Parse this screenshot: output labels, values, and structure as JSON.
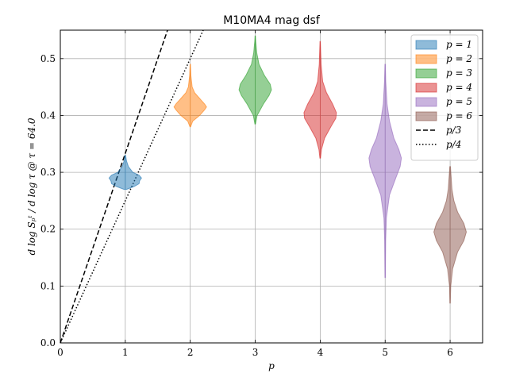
{
  "chart_data": {
    "type": "violin",
    "title": "M10MA4 mag dsf",
    "xlabel": "p",
    "ylabel": "d log Sₚᵗ / d log τ @ τ = 64.0",
    "xlim": [
      0,
      6.5
    ],
    "ylim": [
      0,
      0.55
    ],
    "xticks": [
      0,
      1,
      2,
      3,
      4,
      5,
      6
    ],
    "yticks": [
      0.0,
      0.1,
      0.2,
      0.3,
      0.4,
      0.5
    ],
    "grid": true,
    "legend_position": "top-right",
    "violins": [
      {
        "name": "p = 1",
        "p": 1,
        "color": "#1f77b4",
        "median": 0.29,
        "min": 0.27,
        "max": 0.33,
        "profile": [
          [
            0.27,
            0.02
          ],
          [
            0.275,
            0.14
          ],
          [
            0.28,
            0.22
          ],
          [
            0.285,
            0.23
          ],
          [
            0.29,
            0.26
          ],
          [
            0.295,
            0.22
          ],
          [
            0.3,
            0.12
          ],
          [
            0.31,
            0.05
          ],
          [
            0.32,
            0.02
          ],
          [
            0.33,
            0.005
          ]
        ]
      },
      {
        "name": "p = 2",
        "p": 2,
        "color": "#ff7f0e",
        "median": 0.415,
        "min": 0.38,
        "max": 0.49,
        "profile": [
          [
            0.38,
            0.005
          ],
          [
            0.39,
            0.04
          ],
          [
            0.4,
            0.15
          ],
          [
            0.41,
            0.23
          ],
          [
            0.415,
            0.26
          ],
          [
            0.42,
            0.23
          ],
          [
            0.43,
            0.15
          ],
          [
            0.44,
            0.07
          ],
          [
            0.45,
            0.03
          ],
          [
            0.47,
            0.01
          ],
          [
            0.49,
            0.003
          ]
        ]
      },
      {
        "name": "p = 3",
        "p": 3,
        "color": "#2ca02c",
        "median": 0.445,
        "min": 0.385,
        "max": 0.54,
        "profile": [
          [
            0.385,
            0.005
          ],
          [
            0.4,
            0.03
          ],
          [
            0.42,
            0.13
          ],
          [
            0.435,
            0.22
          ],
          [
            0.445,
            0.26
          ],
          [
            0.455,
            0.24
          ],
          [
            0.47,
            0.15
          ],
          [
            0.49,
            0.06
          ],
          [
            0.51,
            0.025
          ],
          [
            0.53,
            0.008
          ],
          [
            0.54,
            0.003
          ]
        ]
      },
      {
        "name": "p = 4",
        "p": 4,
        "color": "#d62728",
        "median": 0.4,
        "min": 0.325,
        "max": 0.53,
        "profile": [
          [
            0.325,
            0.005
          ],
          [
            0.34,
            0.02
          ],
          [
            0.36,
            0.07
          ],
          [
            0.38,
            0.17
          ],
          [
            0.395,
            0.25
          ],
          [
            0.405,
            0.26
          ],
          [
            0.42,
            0.2
          ],
          [
            0.44,
            0.1
          ],
          [
            0.46,
            0.04
          ],
          [
            0.49,
            0.015
          ],
          [
            0.53,
            0.003
          ]
        ]
      },
      {
        "name": "p = 5",
        "p": 5,
        "color": "#9467bd",
        "median": 0.32,
        "min": 0.115,
        "max": 0.49,
        "profile": [
          [
            0.115,
            0.003
          ],
          [
            0.18,
            0.008
          ],
          [
            0.22,
            0.02
          ],
          [
            0.26,
            0.07
          ],
          [
            0.29,
            0.17
          ],
          [
            0.31,
            0.24
          ],
          [
            0.325,
            0.26
          ],
          [
            0.34,
            0.22
          ],
          [
            0.36,
            0.14
          ],
          [
            0.39,
            0.07
          ],
          [
            0.42,
            0.03
          ],
          [
            0.46,
            0.01
          ],
          [
            0.49,
            0.003
          ]
        ]
      },
      {
        "name": "p = 6",
        "p": 6,
        "color": "#8c564b",
        "median": 0.195,
        "min": 0.07,
        "max": 0.31,
        "profile": [
          [
            0.07,
            0.003
          ],
          [
            0.1,
            0.01
          ],
          [
            0.13,
            0.04
          ],
          [
            0.16,
            0.12
          ],
          [
            0.18,
            0.22
          ],
          [
            0.195,
            0.26
          ],
          [
            0.21,
            0.22
          ],
          [
            0.23,
            0.12
          ],
          [
            0.25,
            0.06
          ],
          [
            0.27,
            0.03
          ],
          [
            0.31,
            0.005
          ]
        ]
      }
    ],
    "lines": [
      {
        "name": "p/3",
        "style": "dashed",
        "slope": 0.3333
      },
      {
        "name": "p/4",
        "style": "dotted",
        "slope": 0.25
      }
    ]
  },
  "legend": [
    {
      "label": "p = 1",
      "kind": "patch",
      "color": "#1f77b4"
    },
    {
      "label": "p = 2",
      "kind": "patch",
      "color": "#ff7f0e"
    },
    {
      "label": "p = 3",
      "kind": "patch",
      "color": "#2ca02c"
    },
    {
      "label": "p = 4",
      "kind": "patch",
      "color": "#d62728"
    },
    {
      "label": "p = 5",
      "kind": "patch",
      "color": "#9467bd"
    },
    {
      "label": "p = 6",
      "kind": "patch",
      "color": "#8c564b"
    },
    {
      "label": "p/3",
      "kind": "dashed",
      "color": "#000000"
    },
    {
      "label": "p/4",
      "kind": "dotted",
      "color": "#000000"
    }
  ]
}
